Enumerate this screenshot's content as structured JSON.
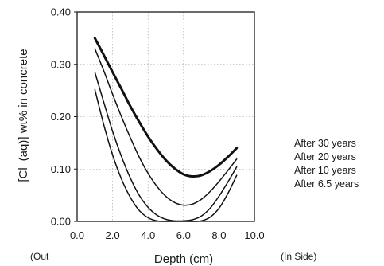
{
  "chart_data": {
    "type": "line",
    "xlabel": "Depth (cm)",
    "ylabel": "[Cl⁻(aq)] wt% in concrete",
    "xlim": [
      0,
      10
    ],
    "ylim": [
      0,
      0.4
    ],
    "x_ticks": [
      "0.0",
      "2.0",
      "4.0",
      "6.0",
      "8.0",
      "10.0"
    ],
    "y_ticks": [
      "0.00",
      "0.10",
      "0.20",
      "0.30",
      "0.40"
    ],
    "x_side_labels": {
      "left": "(Out",
      "right": "(In Side)"
    },
    "grid": true,
    "legend_placement": "right",
    "series": [
      {
        "name": "After 30 years",
        "stroke": "thick",
        "x": [
          1.0,
          1.5,
          2.0,
          2.5,
          3.0,
          3.5,
          4.0,
          4.5,
          5.0,
          5.5,
          6.0,
          6.5,
          7.0,
          7.5,
          8.0,
          8.5,
          9.0
        ],
        "y": [
          0.35,
          0.318,
          0.285,
          0.253,
          0.22,
          0.19,
          0.162,
          0.138,
          0.117,
          0.101,
          0.09,
          0.086,
          0.088,
          0.096,
          0.108,
          0.123,
          0.14
        ]
      },
      {
        "name": "After 20 years",
        "stroke": "thin",
        "x": [
          1.0,
          1.5,
          2.0,
          2.5,
          3.0,
          3.5,
          4.0,
          4.5,
          5.0,
          5.5,
          6.0,
          6.5,
          7.0,
          7.5,
          8.0,
          8.5,
          9.0
        ],
        "y": [
          0.33,
          0.288,
          0.243,
          0.2,
          0.16,
          0.123,
          0.092,
          0.067,
          0.048,
          0.036,
          0.031,
          0.033,
          0.042,
          0.057,
          0.076,
          0.097,
          0.119
        ]
      },
      {
        "name": "After 10 years",
        "stroke": "thin",
        "x": [
          1.0,
          1.5,
          2.0,
          2.5,
          3.0,
          3.5,
          4.0,
          4.5,
          5.0,
          5.5,
          6.0,
          6.5,
          7.0,
          7.5,
          8.0,
          8.5,
          9.0
        ],
        "y": [
          0.285,
          0.228,
          0.172,
          0.124,
          0.083,
          0.05,
          0.027,
          0.012,
          0.004,
          0.001,
          0.001,
          0.003,
          0.01,
          0.025,
          0.048,
          0.075,
          0.104
        ]
      },
      {
        "name": "After 6.5 years",
        "stroke": "thin",
        "x": [
          1.0,
          1.5,
          2.0,
          2.5,
          3.0,
          3.5,
          4.0,
          4.5,
          5.0,
          5.5,
          6.0,
          6.5,
          7.0,
          7.5,
          8.0,
          8.5,
          9.0
        ],
        "y": [
          0.252,
          0.185,
          0.127,
          0.081,
          0.046,
          0.021,
          0.007,
          0.001,
          0.0,
          0.0,
          0.0,
          0.0,
          0.001,
          0.008,
          0.025,
          0.053,
          0.088
        ]
      }
    ]
  }
}
